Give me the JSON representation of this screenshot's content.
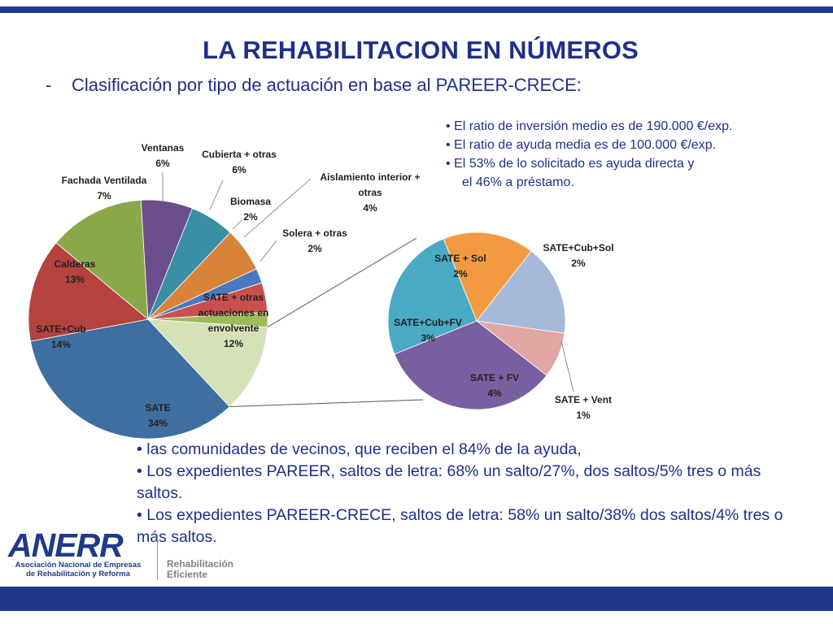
{
  "header": {
    "title": "LA REHABILITACION EN NÚMEROS",
    "subtitle_dash": "-",
    "subtitle": "Clasificación por tipo de actuación en base al PAREER-CRECE:"
  },
  "ratios": [
    "• El ratio de inversión medio es de 190.000 €/exp.",
    "• El ratio de ayuda media es de 100.000 €/exp.",
    "• El 53% de lo solicitado es ayuda directa y",
    "el 46% a préstamo."
  ],
  "notes": [
    "• las comunidades de vecinos, que reciben el 84% de la ayuda,",
    "• Los expedientes PAREER, saltos de letra: 68% un salto/27%, dos saltos/5% tres o más saltos.",
    "• Los expedientes PAREER-CRECE, saltos de letra: 58% un salto/38% dos saltos/4% tres o más saltos."
  ],
  "logo": {
    "name": "ANERR",
    "line1": "Asociación Nacional de Empresas",
    "line2": "de Rehabilitación y Reforma",
    "tag1": "Rehabilitación",
    "tag2": "Eficiente"
  },
  "chart_data": [
    {
      "type": "pie",
      "title": "",
      "slices": [
        {
          "label": "SATE",
          "value": 34,
          "display": "34%",
          "color": "#3f6ea0"
        },
        {
          "label": "SATE+Cub",
          "value": 14,
          "display": "14%",
          "color": "#b5423f"
        },
        {
          "label": "Calderas",
          "value": 13,
          "display": "13%",
          "color": "#8aa84a"
        },
        {
          "label": "Fachada Ventilada",
          "value": 7,
          "display": "7%",
          "color": "#6b4f8c"
        },
        {
          "label": "Ventanas",
          "value": 6,
          "display": "6%",
          "color": "#3a8fa6"
        },
        {
          "label": "Cubierta + otras",
          "value": 6,
          "display": "6%",
          "color": "#d9823a"
        },
        {
          "label": "Biomasa",
          "value": 2,
          "display": "2%",
          "color": "#4a79c0"
        },
        {
          "label": "Aislamiento interior + otras",
          "value": 4,
          "display": "4%",
          "color": "#c9504d"
        },
        {
          "label": "Solera + otras",
          "value": 2,
          "display": "2%",
          "color": "#9cbb59"
        },
        {
          "label": "SATE + otras actuaciones en envolvente",
          "value": 12,
          "display": "12%",
          "color": "#d5e2b8"
        }
      ]
    },
    {
      "type": "pie",
      "title": "",
      "slices": [
        {
          "label": "SATE + Sol",
          "value": 2,
          "display": "2%",
          "color": "#f39a40"
        },
        {
          "label": "SATE+Cub+Sol",
          "value": 2,
          "display": "2%",
          "color": "#a6b8d8"
        },
        {
          "label": "SATE + Vent",
          "value": 1,
          "display": "1%",
          "color": "#e0a6a4"
        },
        {
          "label": "SATE + FV",
          "value": 4,
          "display": "4%",
          "color": "#7a5fa0"
        },
        {
          "label": "SATE+Cub+FV",
          "value": 3,
          "display": "3%",
          "color": "#4aaac4"
        }
      ]
    }
  ]
}
